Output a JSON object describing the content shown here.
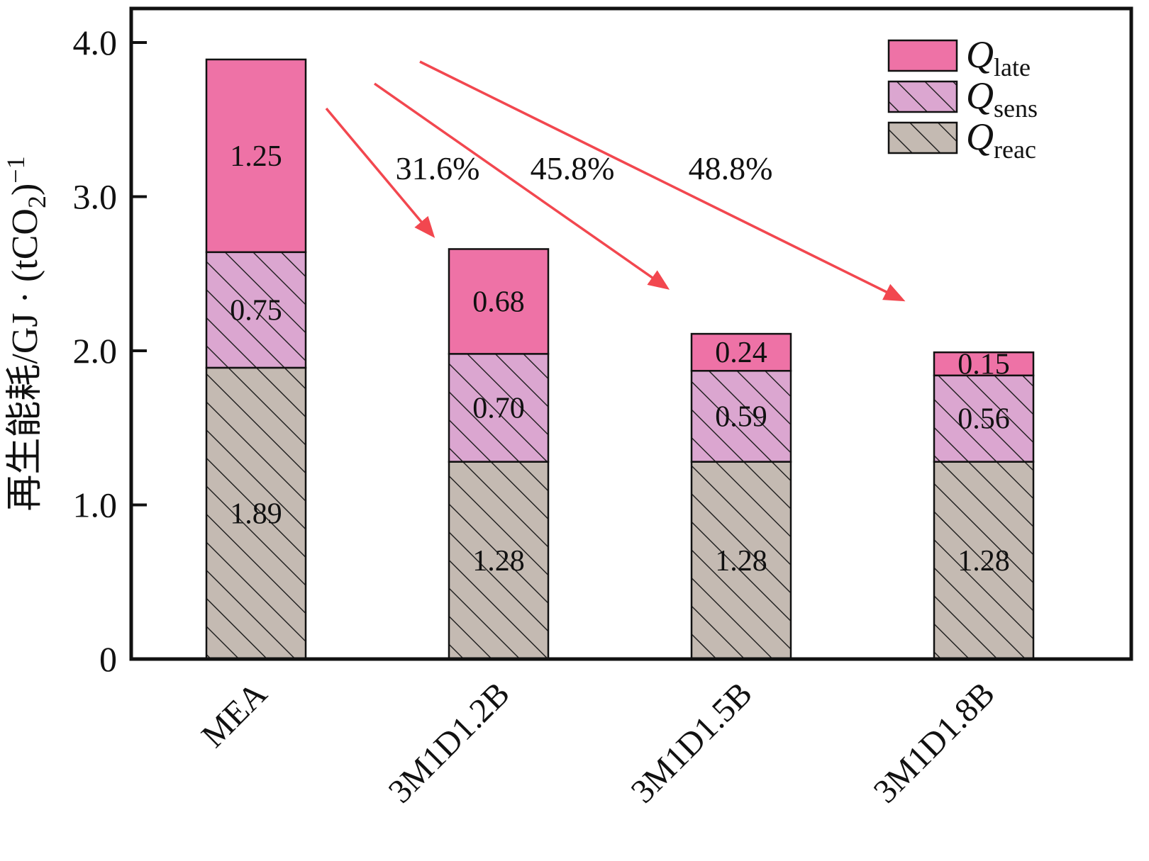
{
  "chart_data": {
    "type": "bar",
    "stacked": true,
    "title": "",
    "ylabel": "再生能耗/GJ·(tCO2)^-1",
    "ylabel_parts": {
      "prefix": "再生能耗/GJ · (tCO",
      "sub": "2",
      "close": ")",
      "sup": "−1"
    },
    "categories": [
      "MEA",
      "3M1D1.2B",
      "3M1D1.5B",
      "3M1D1.8B"
    ],
    "series": [
      {
        "name": "Q_reac",
        "legend_main": "Q",
        "legend_sub": "reac",
        "color": "#c4bab2",
        "hatch": true,
        "values": [
          1.89,
          1.28,
          1.28,
          1.28
        ],
        "labels": [
          "1.89",
          "1.28",
          "1.28",
          "1.28"
        ]
      },
      {
        "name": "Q_sens",
        "legend_main": "Q",
        "legend_sub": "sens",
        "color": "#dba6d0",
        "hatch": true,
        "values": [
          0.75,
          0.7,
          0.59,
          0.56
        ],
        "labels": [
          "0.75",
          "0.70",
          "0.59",
          "0.56"
        ]
      },
      {
        "name": "Q_late",
        "legend_main": "Q",
        "legend_sub": "late",
        "color": "#ee72a6",
        "hatch": false,
        "values": [
          1.25,
          0.68,
          0.24,
          0.15
        ],
        "labels": [
          "1.25",
          "0.68",
          "0.24",
          "0.15"
        ]
      }
    ],
    "totals": [
      3.89,
      2.66,
      2.11,
      1.99
    ],
    "yticks": [
      0,
      1.0,
      2.0,
      3.0,
      4.0
    ],
    "ytick_labels": [
      "0",
      "1.0",
      "2.0",
      "3.0",
      "4.0"
    ],
    "ylim": [
      0,
      4.22
    ],
    "grid": false,
    "legend": {
      "position": "top-right",
      "order": [
        "Q_late",
        "Q_sens",
        "Q_reac"
      ]
    },
    "annotations": [
      {
        "text": "31.6%"
      },
      {
        "text": "45.8%"
      },
      {
        "text": "48.8%"
      }
    ],
    "arrow_color": "#f2474f",
    "axis_color": "#111111"
  }
}
